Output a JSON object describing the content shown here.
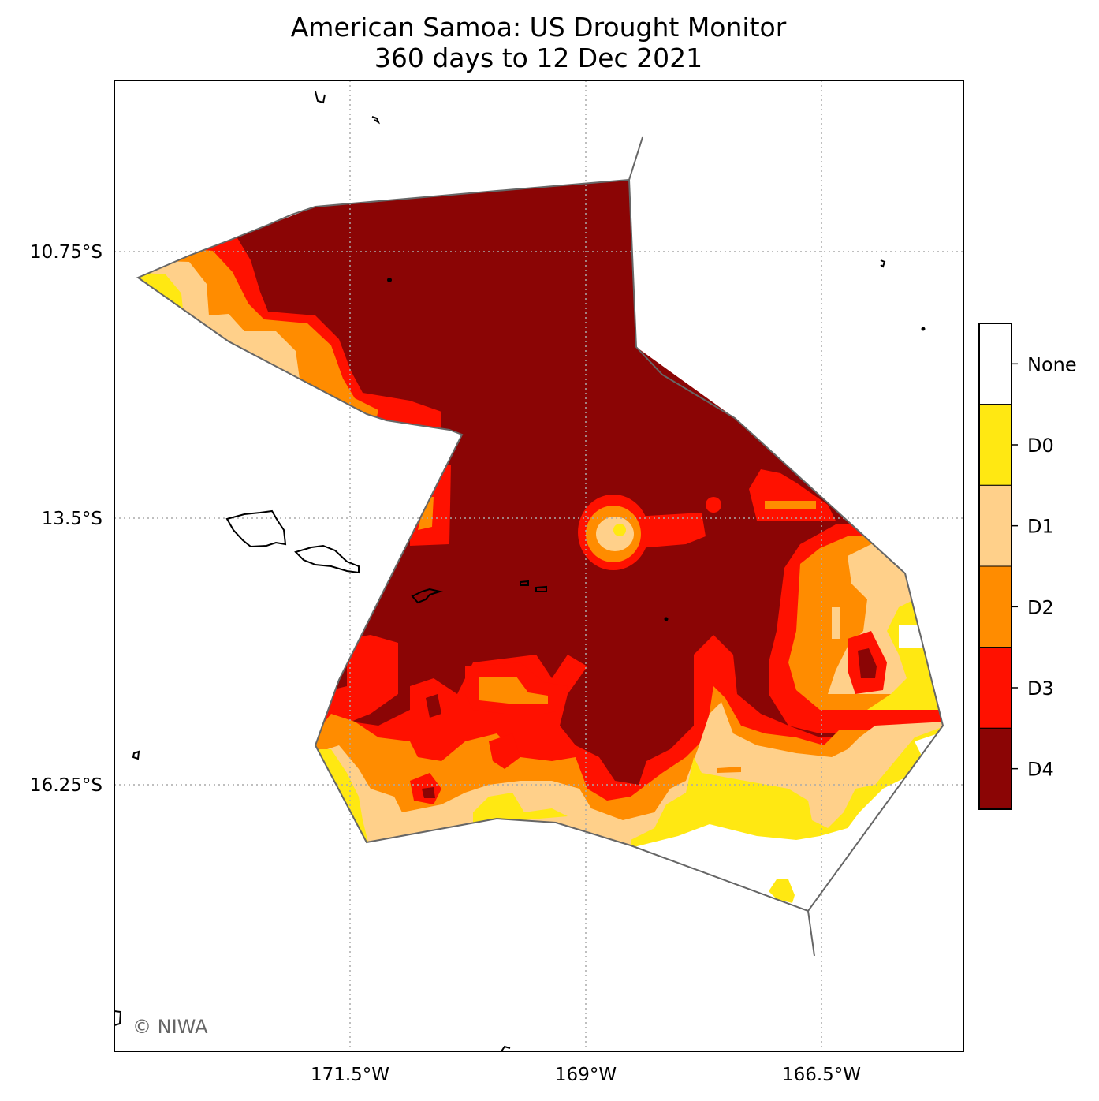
{
  "title": "American Samoa: US Drought Monitor",
  "subtitle": "360 days to 12 Dec 2021",
  "axes": {
    "lon_ticks": [
      "171.5°W",
      "169°W",
      "166.5°W"
    ],
    "lat_ticks": [
      "10.75°S",
      "13.5°S",
      "16.25°S"
    ],
    "gridlines": "dotted"
  },
  "colorbar": {
    "categories": [
      {
        "label": "None",
        "color": "#ffffff"
      },
      {
        "label": "D0",
        "color": "#ffe812"
      },
      {
        "label": "D1",
        "color": "#ffd08a"
      },
      {
        "label": "D2",
        "color": "#ff8c00"
      },
      {
        "label": "D3",
        "color": "#ff1100"
      },
      {
        "label": "D4",
        "color": "#8b0505"
      }
    ]
  },
  "credit": "© NIWA",
  "colors": {
    "eez_outline": "#666666",
    "gridline": "#aaaaaa",
    "coastline": "#000000"
  }
}
